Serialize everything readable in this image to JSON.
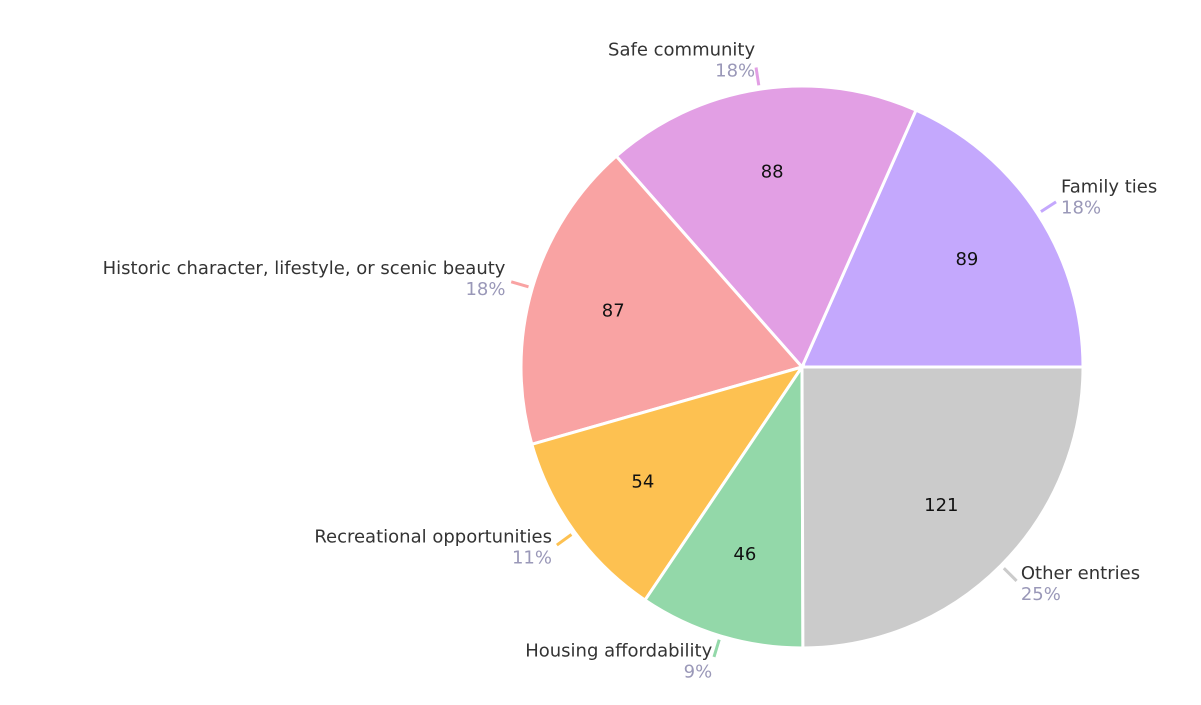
{
  "chart_data": {
    "type": "pie",
    "categories": [
      "Family ties",
      "Safe community",
      "Historic character, lifestyle, or scenic beauty",
      "Recreational opportunities",
      "Housing affordability",
      "Other entries"
    ],
    "values": [
      89,
      88,
      87,
      54,
      46,
      121
    ],
    "percent_labels": [
      "18%",
      "18%",
      "18%",
      "11%",
      "9%",
      "25%"
    ],
    "colors": [
      "#c4a8fd",
      "#e29fe4",
      "#f9a3a3",
      "#fdc151",
      "#93d8a9",
      "#cbcbcb"
    ]
  }
}
